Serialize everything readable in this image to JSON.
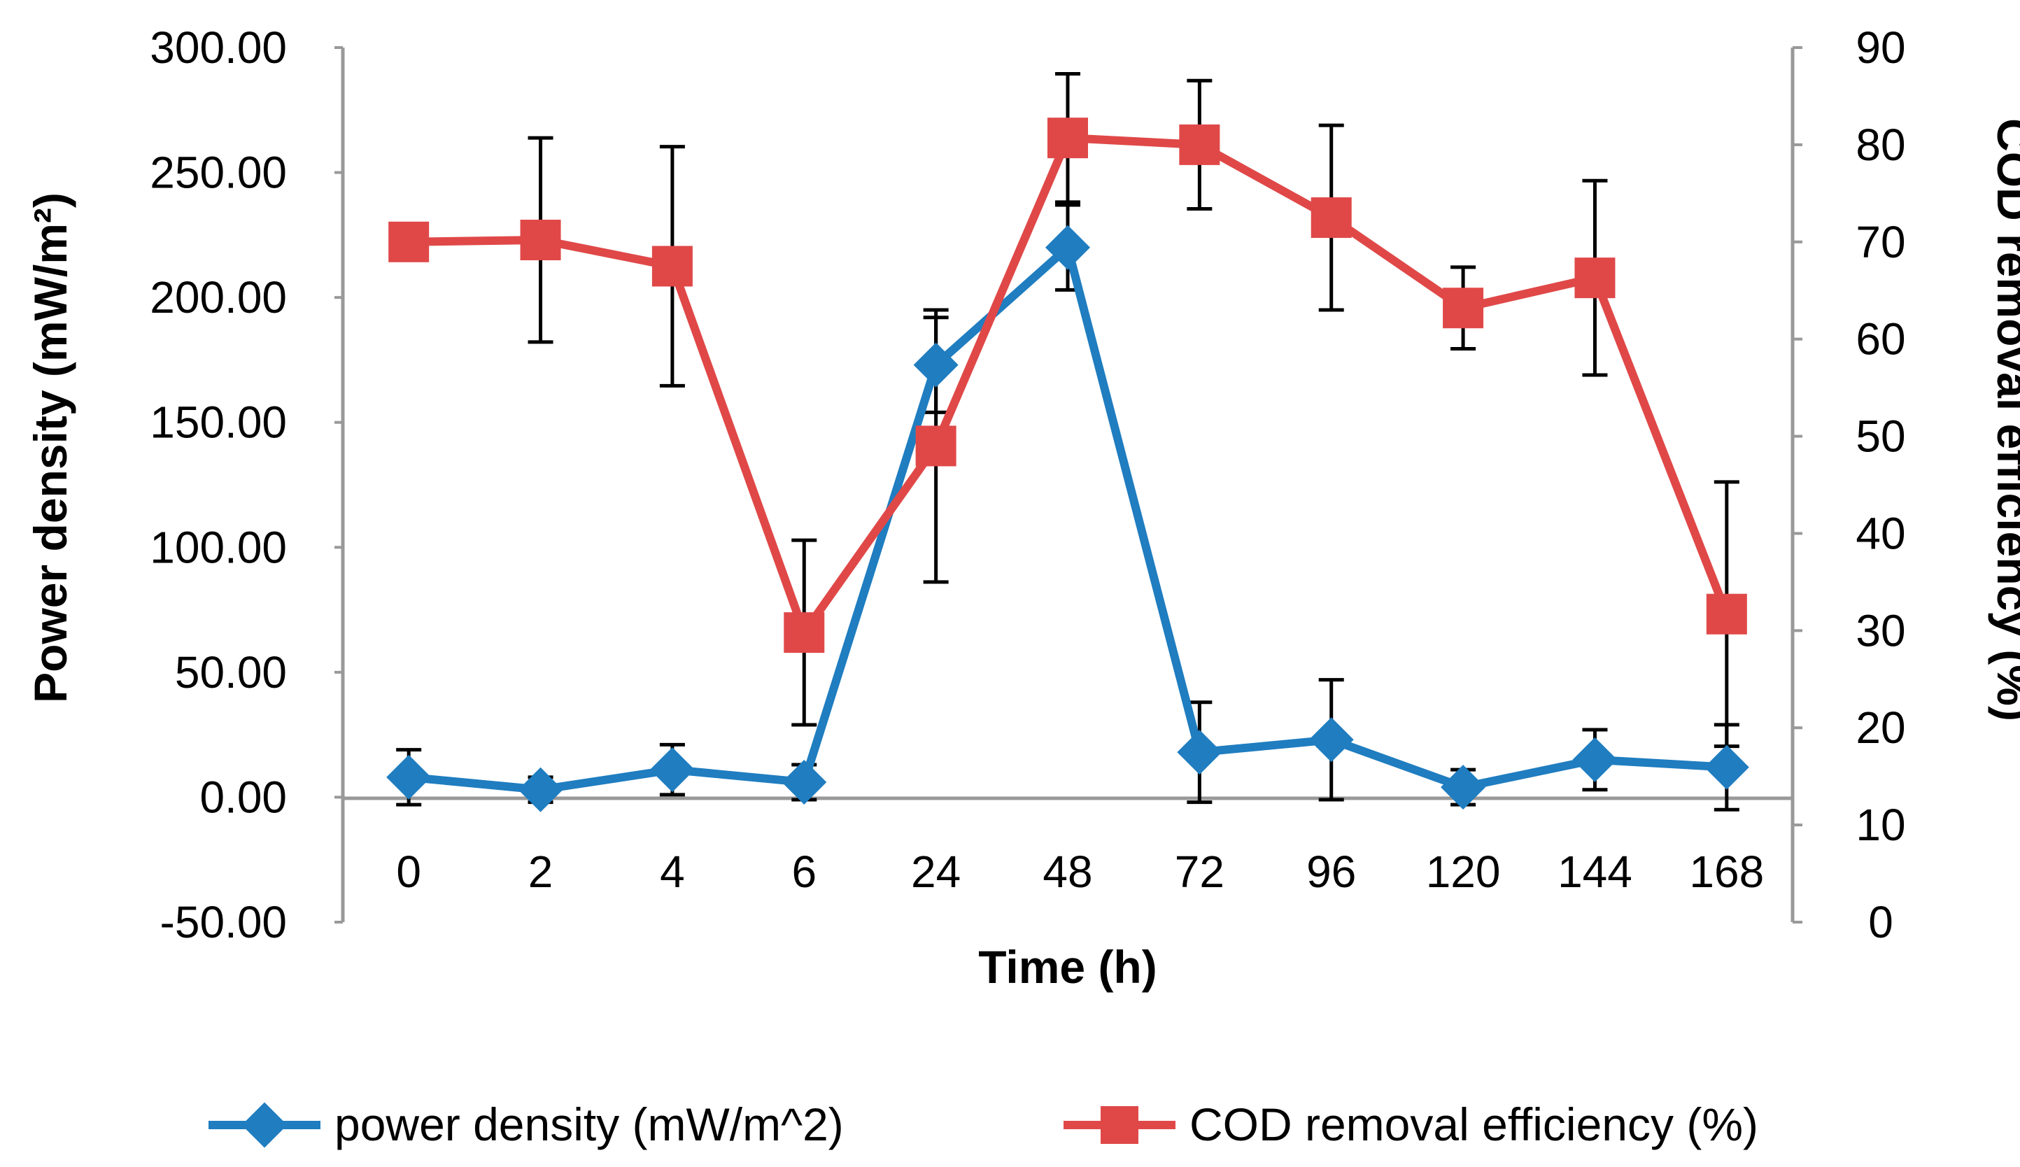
{
  "chart_data": {
    "type": "line",
    "categories": [
      "0",
      "2",
      "4",
      "6",
      "24",
      "48",
      "72",
      "96",
      "120",
      "144",
      "168"
    ],
    "xlabel": "Time (h)",
    "ylabel_left": "Power density (mW/m²)",
    "ylabel_right": "COD removal efficiency (%)",
    "ylim_left": [
      -50,
      300
    ],
    "yticks_left": [
      "300.00",
      "250.00",
      "200.00",
      "150.00",
      "100.00",
      "50.00",
      "0.00",
      "-50.00"
    ],
    "ylim_right": [
      0,
      90
    ],
    "yticks_right": [
      "90",
      "80",
      "70",
      "60",
      "50",
      "40",
      "30",
      "20",
      "10",
      "0"
    ],
    "legend_position": "bottom",
    "series": [
      {
        "name": "power density (mW/m^2)",
        "axis": "left",
        "color": "#1f7dc0",
        "marker": "diamond",
        "values": [
          8,
          3,
          11,
          6,
          173,
          220,
          18,
          23,
          4,
          15,
          12
        ],
        "errors": [
          11,
          5,
          10,
          7,
          19,
          17,
          20,
          24,
          7,
          12,
          17
        ]
      },
      {
        "name": "COD removal efficiency (%)",
        "axis": "right",
        "color": "#e04848",
        "marker": "square",
        "values": [
          70,
          70.2,
          67.5,
          29.8,
          49,
          80.7,
          80,
          72.5,
          63.2,
          66.3,
          31.7
        ],
        "errors": [
          0,
          10.5,
          12.3,
          9.5,
          14,
          6.6,
          6.6,
          9.5,
          4.2,
          10,
          13.6
        ]
      }
    ]
  }
}
